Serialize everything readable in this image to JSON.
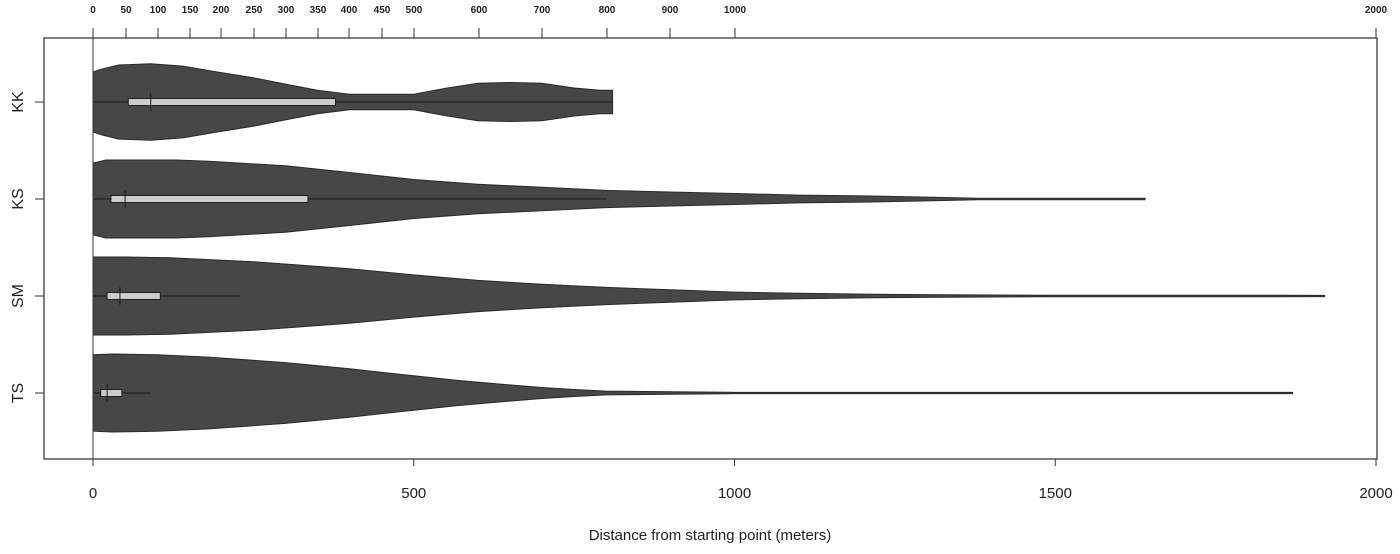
{
  "chart_data": {
    "type": "violin",
    "orientation": "horizontal",
    "title": "",
    "xlabel": "Distance from starting point (meters)",
    "ylabel": "",
    "xlim": [
      0,
      2000
    ],
    "bottom_axis_ticks": [
      0,
      500,
      1000,
      1500,
      2000
    ],
    "top_axis_ticks": [
      0,
      50,
      100,
      150,
      200,
      250,
      300,
      350,
      400,
      450,
      500,
      600,
      700,
      800,
      900,
      1000,
      2000
    ],
    "top_axis_note": "secondary axis with nonlinear (square-root-like) spacing",
    "categories": [
      "KK",
      "KS",
      "SM",
      "TS"
    ],
    "colors": {
      "violin_fill": "#474747",
      "box_fill": "#cccccc",
      "line": "#222222",
      "frame": "#555555"
    },
    "series": [
      {
        "name": "KK",
        "box": {
          "whisker_low": 0,
          "q1": 55,
          "median": 90,
          "q3": 378,
          "whisker_high": 810
        },
        "max": 810,
        "density_profile": [
          [
            0,
            0.77
          ],
          [
            15,
            0.85
          ],
          [
            40,
            0.95
          ],
          [
            90,
            0.98
          ],
          [
            140,
            0.92
          ],
          [
            190,
            0.78
          ],
          [
            250,
            0.62
          ],
          [
            300,
            0.46
          ],
          [
            350,
            0.3
          ],
          [
            400,
            0.2
          ],
          [
            450,
            0.2
          ],
          [
            500,
            0.2
          ],
          [
            550,
            0.35
          ],
          [
            600,
            0.48
          ],
          [
            650,
            0.5
          ],
          [
            700,
            0.48
          ],
          [
            750,
            0.36
          ],
          [
            790,
            0.3
          ],
          [
            810,
            0.3
          ]
        ]
      },
      {
        "name": "KS",
        "box": {
          "whisker_low": 0,
          "q1": 28,
          "median": 50,
          "q3": 335,
          "whisker_high": 800
        },
        "max": 1640,
        "density_profile": [
          [
            0,
            0.92
          ],
          [
            20,
            1.0
          ],
          [
            130,
            1.0
          ],
          [
            180,
            0.97
          ],
          [
            300,
            0.85
          ],
          [
            400,
            0.68
          ],
          [
            500,
            0.5
          ],
          [
            600,
            0.38
          ],
          [
            700,
            0.3
          ],
          [
            800,
            0.22
          ],
          [
            900,
            0.18
          ],
          [
            1000,
            0.14
          ],
          [
            1100,
            0.1
          ],
          [
            1200,
            0.08
          ],
          [
            1300,
            0.05
          ],
          [
            1380,
            0.02
          ],
          [
            1640,
            0.02
          ]
        ]
      },
      {
        "name": "SM",
        "box": {
          "whisker_low": 0,
          "q1": 22,
          "median": 42,
          "q3": 105,
          "whisker_high": 230
        },
        "max": 1920,
        "density_profile": [
          [
            0,
            1.0
          ],
          [
            50,
            1.0
          ],
          [
            120,
            0.98
          ],
          [
            250,
            0.88
          ],
          [
            400,
            0.7
          ],
          [
            500,
            0.54
          ],
          [
            600,
            0.4
          ],
          [
            700,
            0.3
          ],
          [
            800,
            0.22
          ],
          [
            900,
            0.16
          ],
          [
            1000,
            0.1
          ],
          [
            1100,
            0.07
          ],
          [
            1200,
            0.05
          ],
          [
            1320,
            0.03
          ],
          [
            1500,
            0.02
          ],
          [
            1760,
            0.02
          ],
          [
            1920,
            0.005
          ]
        ]
      },
      {
        "name": "TS",
        "box": {
          "whisker_low": 0,
          "q1": 12,
          "median": 22,
          "q3": 45,
          "whisker_high": 90
        },
        "max": 1870,
        "density_profile": [
          [
            0,
            0.98
          ],
          [
            30,
            1.0
          ],
          [
            100,
            0.98
          ],
          [
            180,
            0.92
          ],
          [
            300,
            0.78
          ],
          [
            400,
            0.62
          ],
          [
            500,
            0.44
          ],
          [
            570,
            0.32
          ],
          [
            640,
            0.22
          ],
          [
            700,
            0.14
          ],
          [
            750,
            0.09
          ],
          [
            800,
            0.05
          ],
          [
            900,
            0.03
          ],
          [
            990,
            0.02
          ],
          [
            1000,
            0.005
          ],
          [
            1870,
            0.005
          ]
        ]
      }
    ]
  },
  "labels": {
    "xlabel": "Distance from starting point (meters)",
    "bottom_ticks": [
      "0",
      "500",
      "1000",
      "1500",
      "2000"
    ],
    "top_ticks": [
      "0",
      "50",
      "100",
      "150",
      "200",
      "250",
      "300",
      "350",
      "400",
      "450",
      "500",
      "600",
      "700",
      "800",
      "900",
      "1000",
      "2000"
    ],
    "categories": [
      "KK",
      "KS",
      "SM",
      "TS"
    ]
  }
}
